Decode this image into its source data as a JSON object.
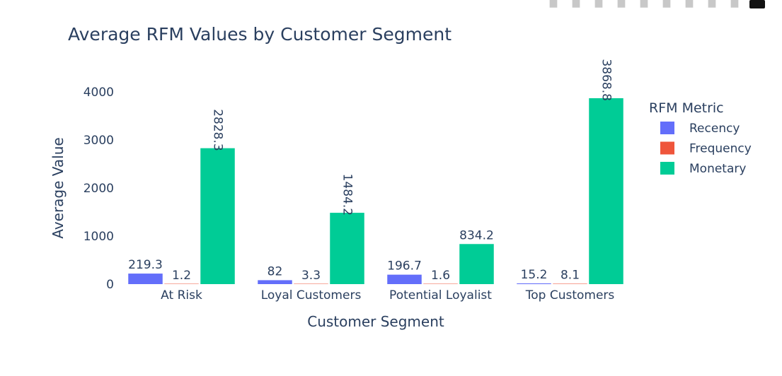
{
  "chart_data": {
    "type": "bar",
    "title": "Average RFM Values by Customer Segment",
    "xlabel": "Customer Segment",
    "ylabel": "Average Value",
    "categories": [
      "At Risk",
      "Loyal Customers",
      "Potential Loyalist",
      "Top Customers"
    ],
    "series": [
      {
        "name": "Recency",
        "color": "#636efa",
        "values": [
          219.3,
          82,
          196.7,
          15.2
        ],
        "labels": [
          "219.3",
          "82",
          "196.7",
          "15.2"
        ]
      },
      {
        "name": "Frequency",
        "color": "#ef553b",
        "values": [
          1.2,
          3.3,
          1.6,
          8.1
        ],
        "labels": [
          "1.2",
          "3.3",
          "1.6",
          "8.1"
        ]
      },
      {
        "name": "Monetary",
        "color": "#00cc96",
        "values": [
          2828.3,
          1484.2,
          834.2,
          3868.8
        ],
        "labels": [
          "2828.3",
          "1484.2",
          "834.2",
          "3868.8"
        ]
      }
    ],
    "yticks": [
      0,
      1000,
      2000,
      3000,
      4000
    ],
    "ylim": [
      0,
      4000
    ],
    "legend_title": "RFM Metric",
    "legend_position": "right",
    "grid": false
  },
  "modebar": {
    "icons": [
      "camera-icon",
      "zoom-icon",
      "pan-icon",
      "box-select-icon",
      "lasso-icon",
      "zoom-in-icon",
      "zoom-out-icon",
      "autoscale-icon",
      "home-icon",
      "plotly-logo-icon"
    ]
  }
}
